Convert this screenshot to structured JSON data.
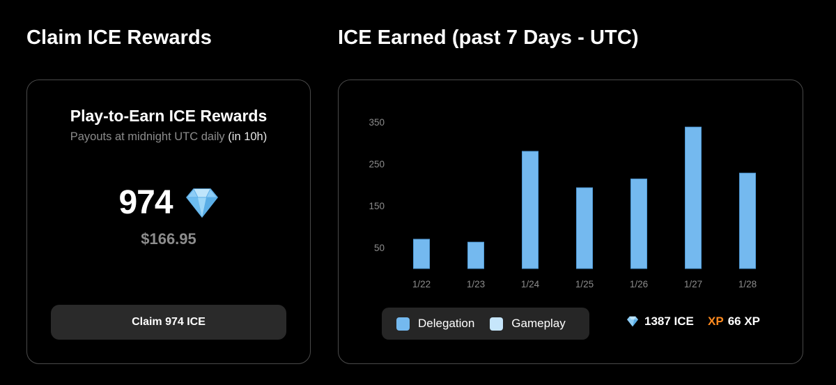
{
  "left": {
    "title": "Claim ICE Rewards",
    "card_heading": "Play-to-Earn ICE Rewards",
    "subtitle_prefix": "Payouts at midnight UTC daily",
    "subtitle_highlight": "(in 10h)",
    "amount": "974",
    "usd_value": "$166.95",
    "claim_button": "Claim 974 ICE"
  },
  "right": {
    "title": "ICE Earned (past 7 Days - UTC)",
    "legend": [
      {
        "label": "Delegation",
        "color": "#74b9ef"
      },
      {
        "label": "Gameplay",
        "color": "#c6e6fb"
      }
    ],
    "ice_total": "1387 ICE",
    "xp_label": "XP",
    "xp_total": "66 XP"
  },
  "colors": {
    "bar": "#74b9ef",
    "bar_edge": "#4f9ad6",
    "xp": "#ff8a1f",
    "gem": "#8ecdf6"
  },
  "chart_data": {
    "type": "bar",
    "categories": [
      "1/22",
      "1/23",
      "1/24",
      "1/25",
      "1/26",
      "1/27",
      "1/28"
    ],
    "series": [
      {
        "name": "Delegation",
        "values": [
          70,
          63,
          280,
          193,
          214,
          338,
          228
        ]
      },
      {
        "name": "Gameplay",
        "values": [
          0,
          0,
          0,
          0,
          0,
          0,
          0
        ]
      }
    ],
    "y_ticks": [
      50,
      150,
      250,
      350
    ],
    "ylim": [
      0,
      350
    ],
    "title": "ICE Earned (past 7 Days - UTC)",
    "xlabel": "",
    "ylabel": "",
    "grid": false,
    "legend_position": "bottom-left"
  }
}
